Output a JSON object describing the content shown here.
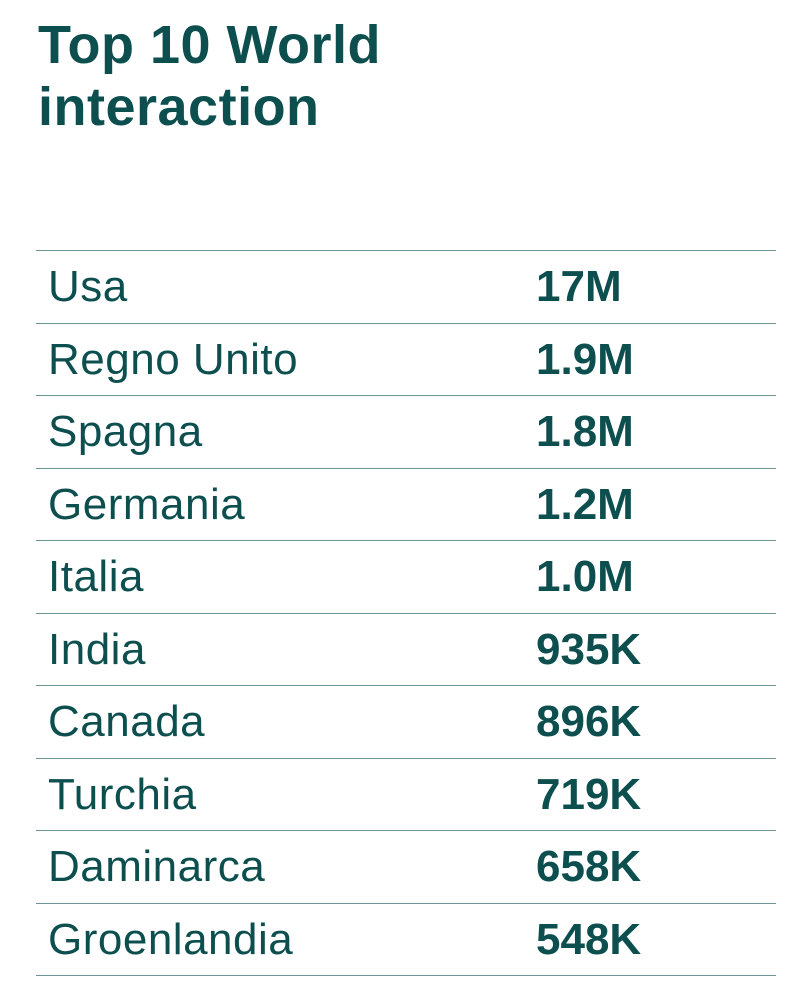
{
  "header": {
    "title_line1": "Top 10 World",
    "title_line2": "interaction"
  },
  "colors": {
    "text": "#0d4f4f",
    "divider": "#6f9494",
    "background": "#ffffff"
  },
  "chart_data": {
    "type": "table",
    "title": "Top 10 World interaction",
    "rows": [
      {
        "country": "Usa",
        "value_label": "17M",
        "value": 17000000
      },
      {
        "country": "Regno Unito",
        "value_label": "1.9M",
        "value": 1900000
      },
      {
        "country": "Spagna",
        "value_label": "1.8M",
        "value": 1800000
      },
      {
        "country": "Germania",
        "value_label": "1.2M",
        "value": 1200000
      },
      {
        "country": "Italia",
        "value_label": "1.0M",
        "value": 1000000
      },
      {
        "country": "India",
        "value_label": "935K",
        "value": 935000
      },
      {
        "country": "Canada",
        "value_label": "896K",
        "value": 896000
      },
      {
        "country": "Turchia",
        "value_label": "719K",
        "value": 719000
      },
      {
        "country": "Daminarca",
        "value_label": "658K",
        "value": 658000
      },
      {
        "country": "Groenlandia",
        "value_label": "548K",
        "value": 548000
      }
    ]
  }
}
